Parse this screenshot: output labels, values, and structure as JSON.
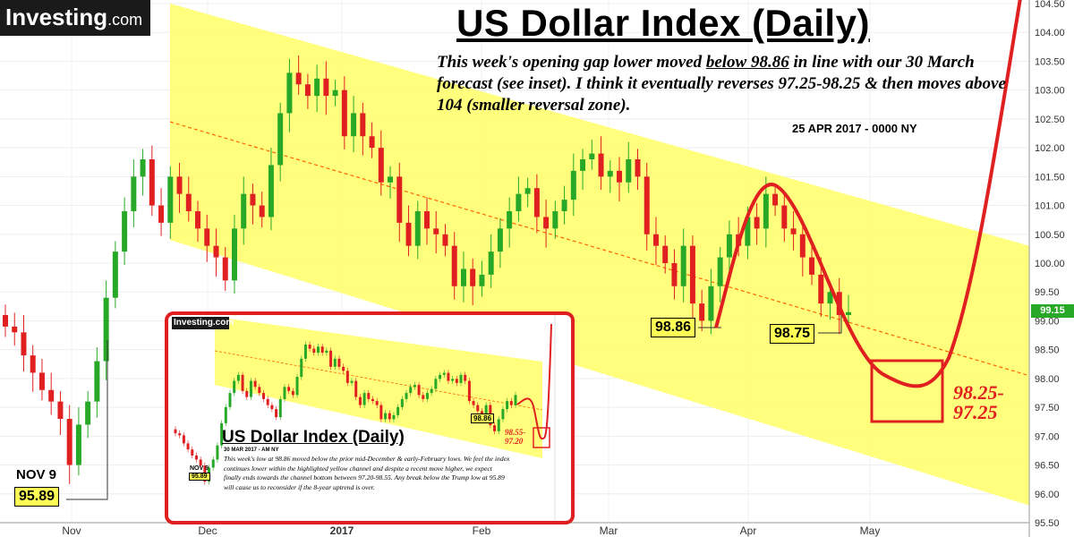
{
  "logo": {
    "main": "Investing",
    "suffix": ".com"
  },
  "title": "US Dollar Index (Daily)",
  "note": {
    "part1": "This week's opening gap lower moved ",
    "underlined": "below 98.86",
    "part2": " in line with our 30 March forecast (see inset). I think it eventually reverses 97.25-98.25 & then moves above 104 (smaller reversal zone)."
  },
  "date": "25 APR 2017 - 0000 NY",
  "colors": {
    "channel": "#ffff66",
    "up": "#27a827",
    "down": "#e02020",
    "midline": "#ff6600",
    "callout": "#e02020"
  },
  "annotations": {
    "nov9_label": "NOV 9",
    "nov9_value": "95.89",
    "low1": "98.86",
    "low2": "98.75",
    "zone_line1": "98.25-",
    "zone_line2": "97.25",
    "current_price": "99.15"
  },
  "inset": {
    "logo": "Investing.com",
    "title": "US Dollar Index (Daily)",
    "date": "30 MAR 2017 - AM NY",
    "note": "This week's low at 98.86 moved below the prior mid-December & early-February lows. We feel the index continues lower within the highlighted yellow channel and despite a recent move higher, we expect finally ends towards the channel bottom between 97.20-98.55. Any break below the Trump low at 95.89 will cause us to reconsider if the 8-year uptrend is over.",
    "tag_low": "98.86",
    "zone_line1": "98.55-",
    "zone_line2": "97.20",
    "nov9_label": "NOV 9",
    "nov9_value": "95.89"
  },
  "chart_data": {
    "type": "candlestick",
    "title": "US Dollar Index (Daily)",
    "x_ticks": [
      "Nov",
      "Dec",
      "2017",
      "Feb",
      "Mar",
      "Apr",
      "May"
    ],
    "y_ticks": [
      "104.50",
      "104.00",
      "103.50",
      "103.00",
      "102.50",
      "102.00",
      "101.50",
      "101.00",
      "100.50",
      "100.00",
      "99.50",
      "99.00",
      "98.50",
      "98.00",
      "97.50",
      "97.00",
      "96.50",
      "96.00",
      "95.50"
    ],
    "ylim": [
      95.5,
      104.5
    ],
    "series": [
      {
        "name": "USD Index",
        "closes": [
          98.9,
          98.8,
          98.4,
          98.1,
          97.8,
          97.6,
          97.3,
          96.5,
          97.2,
          97.6,
          98.3,
          99.4,
          100.2,
          100.9,
          101.5,
          101.8,
          101.0,
          100.7,
          101.5,
          101.2,
          100.9,
          100.6,
          100.3,
          100.1,
          99.7,
          100.6,
          101.2,
          101.0,
          100.8,
          101.7,
          102.6,
          103.3,
          103.1,
          102.9,
          103.2,
          102.9,
          103.0,
          102.2,
          102.6,
          102.2,
          102.0,
          101.4,
          101.5,
          100.7,
          100.3,
          100.9,
          100.6,
          100.5,
          100.3,
          99.6,
          99.9,
          99.6,
          99.8,
          100.2,
          100.6,
          100.9,
          101.2,
          101.3,
          100.8,
          100.6,
          100.9,
          101.1,
          101.6,
          101.8,
          101.9,
          101.5,
          101.6,
          101.4,
          101.8,
          101.5,
          100.5,
          100.3,
          100.0,
          99.6,
          100.3,
          99.3,
          99.0,
          99.6,
          100.1,
          100.5,
          100.3,
          100.8,
          100.6,
          101.2,
          101.0,
          100.6,
          100.5,
          100.1,
          99.8,
          99.3,
          99.5,
          99.1,
          99.15
        ]
      },
      {
        "name": "channel",
        "upper": [
          {
            "x": "2016-11-23",
            "y": 104.5
          },
          {
            "x": "2017-05-05",
            "y": 100.3
          }
        ],
        "lower": [
          {
            "x": "2016-11-23",
            "y": 100.4
          },
          {
            "x": "2017-05-05",
            "y": 95.8
          }
        ]
      }
    ],
    "callouts": [
      {
        "label": "NOV 9",
        "value": 95.89
      },
      {
        "label": "98.86",
        "value": 98.86
      },
      {
        "label": "98.75",
        "value": 98.75
      },
      {
        "label": "98.25-97.25",
        "range": [
          97.25,
          98.25
        ]
      }
    ],
    "last_price": 99.15,
    "grid": true
  }
}
